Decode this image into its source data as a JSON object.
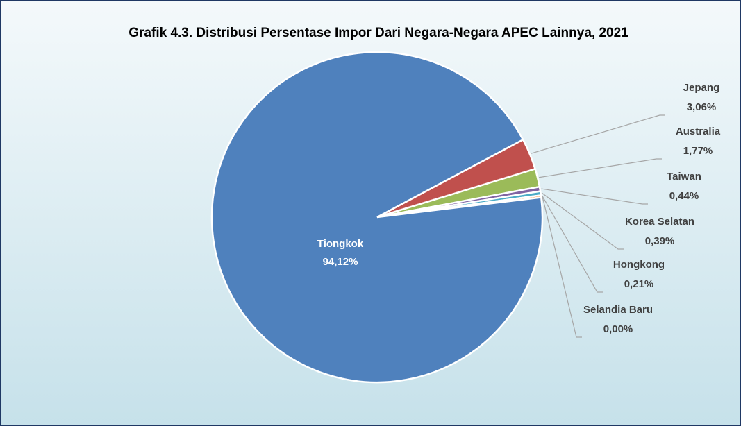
{
  "chart_data": {
    "type": "pie",
    "title": "Grafik 4.3. Distribusi Persentase Impor Dari Negara-Negara APEC Lainnya, 2021",
    "categories": [
      "Tiongkok",
      "Jepang",
      "Australia",
      "Taiwan",
      "Korea Selatan",
      "Hongkong",
      "Selandia Baru"
    ],
    "values": [
      94.12,
      3.06,
      1.77,
      0.44,
      0.39,
      0.21,
      0.0
    ],
    "value_labels": [
      "94,12%",
      "3,06%",
      "1,77%",
      "0,44%",
      "0,39%",
      "0,21%",
      "0,00%"
    ],
    "colors": [
      "#4f81bd",
      "#c0504d",
      "#9bbb59",
      "#8064a2",
      "#4bacc6",
      "#f79646",
      "#2c4d75"
    ]
  }
}
